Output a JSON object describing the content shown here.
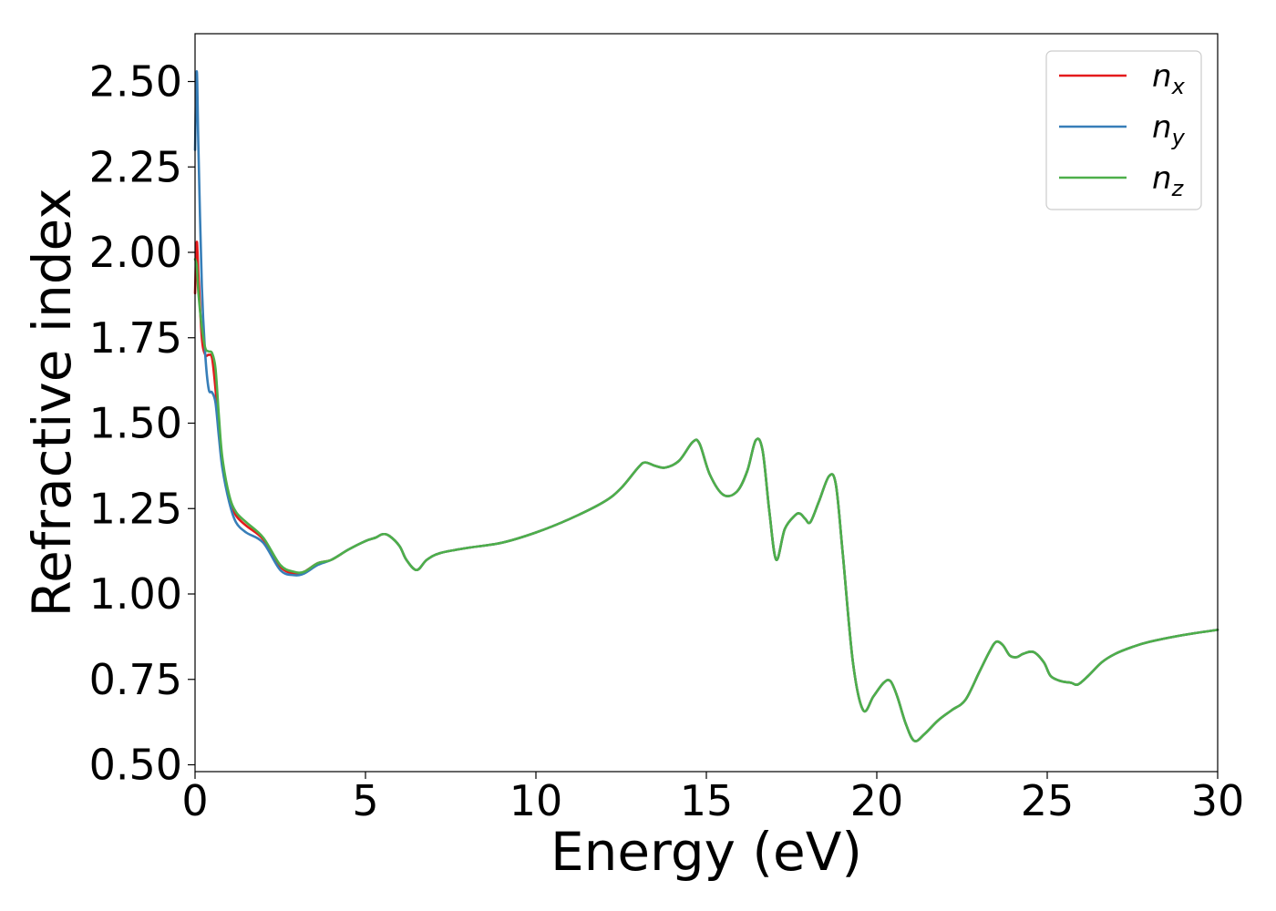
{
  "chart_data": {
    "type": "line",
    "xlabel": "Energy (eV)",
    "ylabel": "Refractive index",
    "xlim": [
      0,
      30
    ],
    "ylim": [
      0.48,
      2.64
    ],
    "x_ticks": [
      "0",
      "5",
      "10",
      "15",
      "20",
      "25",
      "30"
    ],
    "y_ticks": [
      "0.50",
      "0.75",
      "1.00",
      "1.25",
      "1.50",
      "1.75",
      "2.00",
      "2.25",
      "2.50"
    ],
    "grid": false,
    "legend_position": "top-right",
    "series": [
      {
        "name": "n",
        "subscript": "x",
        "color": "#e41a1c",
        "x": [
          0.0,
          0.05,
          0.1,
          0.2,
          0.3,
          0.4,
          0.5,
          0.6,
          0.7,
          0.8,
          1.0,
          1.2,
          1.5,
          2.0,
          2.5,
          2.9,
          3.2,
          3.6,
          4.0,
          4.5,
          5.0,
          5.3,
          5.5,
          5.7,
          6.0,
          6.2,
          6.5,
          6.8,
          7.2,
          8.0,
          9.0,
          10.0,
          11.0,
          12.0,
          12.5,
          13.0,
          13.2,
          13.5,
          13.8,
          14.2,
          14.6,
          14.8,
          15.1,
          15.5,
          15.9,
          16.2,
          16.45,
          16.65,
          16.85,
          17.05,
          17.3,
          17.6,
          17.75,
          17.9,
          18.05,
          18.3,
          18.6,
          18.8,
          19.0,
          19.3,
          19.6,
          19.9,
          20.2,
          20.4,
          20.6,
          20.85,
          21.1,
          21.4,
          21.8,
          22.2,
          22.6,
          23.0,
          23.3,
          23.5,
          23.7,
          23.9,
          24.1,
          24.3,
          24.6,
          24.9,
          25.1,
          25.4,
          25.7,
          25.9,
          26.2,
          26.6,
          27.0,
          27.5,
          28.0,
          29.0,
          30.0
        ],
        "y": [
          1.88,
          2.03,
          1.93,
          1.75,
          1.7,
          1.7,
          1.69,
          1.6,
          1.48,
          1.38,
          1.28,
          1.23,
          1.2,
          1.16,
          1.08,
          1.06,
          1.065,
          1.09,
          1.1,
          1.13,
          1.155,
          1.165,
          1.175,
          1.17,
          1.14,
          1.1,
          1.07,
          1.1,
          1.12,
          1.135,
          1.15,
          1.18,
          1.22,
          1.27,
          1.31,
          1.37,
          1.385,
          1.375,
          1.37,
          1.39,
          1.445,
          1.44,
          1.35,
          1.29,
          1.3,
          1.36,
          1.45,
          1.42,
          1.24,
          1.1,
          1.19,
          1.23,
          1.235,
          1.22,
          1.21,
          1.27,
          1.345,
          1.32,
          1.12,
          0.8,
          0.66,
          0.7,
          0.74,
          0.745,
          0.7,
          0.62,
          0.57,
          0.59,
          0.63,
          0.66,
          0.69,
          0.77,
          0.83,
          0.86,
          0.85,
          0.82,
          0.815,
          0.825,
          0.83,
          0.8,
          0.76,
          0.745,
          0.74,
          0.735,
          0.76,
          0.8,
          0.825,
          0.845,
          0.86,
          0.88,
          0.895
        ]
      },
      {
        "name": "n",
        "subscript": "y",
        "color": "#377eb8",
        "x": [
          0.0,
          0.05,
          0.1,
          0.2,
          0.3,
          0.4,
          0.5,
          0.6,
          0.7,
          0.8,
          1.0,
          1.2,
          1.5,
          2.0,
          2.5,
          2.9,
          3.2,
          3.6,
          4.0,
          4.5,
          5.0,
          5.3,
          5.5,
          5.7,
          6.0,
          6.2,
          6.5,
          6.8,
          7.2,
          8.0,
          9.0,
          10.0,
          11.0,
          12.0,
          12.5,
          13.0,
          13.2,
          13.5,
          13.8,
          14.2,
          14.6,
          14.8,
          15.1,
          15.5,
          15.9,
          16.2,
          16.45,
          16.65,
          16.85,
          17.05,
          17.3,
          17.6,
          17.75,
          17.9,
          18.05,
          18.3,
          18.6,
          18.8,
          19.0,
          19.3,
          19.6,
          19.9,
          20.2,
          20.4,
          20.6,
          20.85,
          21.1,
          21.4,
          21.8,
          22.2,
          22.6,
          23.0,
          23.3,
          23.5,
          23.7,
          23.9,
          24.1,
          24.3,
          24.6,
          24.9,
          25.1,
          25.4,
          25.7,
          25.9,
          26.2,
          26.6,
          27.0,
          27.5,
          28.0,
          29.0,
          30.0
        ],
        "y": [
          2.3,
          2.53,
          2.3,
          1.9,
          1.7,
          1.6,
          1.59,
          1.56,
          1.46,
          1.37,
          1.27,
          1.21,
          1.18,
          1.15,
          1.07,
          1.055,
          1.06,
          1.085,
          1.1,
          1.13,
          1.155,
          1.165,
          1.175,
          1.17,
          1.14,
          1.1,
          1.07,
          1.1,
          1.12,
          1.135,
          1.15,
          1.18,
          1.22,
          1.27,
          1.31,
          1.37,
          1.385,
          1.375,
          1.37,
          1.39,
          1.445,
          1.44,
          1.35,
          1.29,
          1.3,
          1.36,
          1.45,
          1.42,
          1.24,
          1.1,
          1.19,
          1.23,
          1.235,
          1.22,
          1.21,
          1.27,
          1.345,
          1.32,
          1.12,
          0.8,
          0.66,
          0.7,
          0.74,
          0.745,
          0.7,
          0.62,
          0.57,
          0.59,
          0.63,
          0.66,
          0.69,
          0.77,
          0.83,
          0.86,
          0.85,
          0.82,
          0.815,
          0.825,
          0.83,
          0.8,
          0.76,
          0.745,
          0.74,
          0.735,
          0.76,
          0.8,
          0.825,
          0.845,
          0.86,
          0.88,
          0.895
        ]
      },
      {
        "name": "n",
        "subscript": "z",
        "color": "#4daf4a",
        "x": [
          0.0,
          0.05,
          0.1,
          0.2,
          0.3,
          0.4,
          0.5,
          0.6,
          0.7,
          0.8,
          1.0,
          1.2,
          1.5,
          2.0,
          2.5,
          2.9,
          3.2,
          3.6,
          4.0,
          4.5,
          5.0,
          5.3,
          5.5,
          5.7,
          6.0,
          6.2,
          6.5,
          6.8,
          7.2,
          8.0,
          9.0,
          10.0,
          11.0,
          12.0,
          12.5,
          13.0,
          13.2,
          13.5,
          13.8,
          14.2,
          14.6,
          14.8,
          15.1,
          15.5,
          15.9,
          16.2,
          16.45,
          16.65,
          16.85,
          17.05,
          17.3,
          17.6,
          17.75,
          17.9,
          18.05,
          18.3,
          18.6,
          18.8,
          19.0,
          19.3,
          19.6,
          19.9,
          20.2,
          20.4,
          20.6,
          20.85,
          21.1,
          21.4,
          21.8,
          22.2,
          22.6,
          23.0,
          23.3,
          23.5,
          23.7,
          23.9,
          24.1,
          24.3,
          24.6,
          24.9,
          25.1,
          25.4,
          25.7,
          25.9,
          26.2,
          26.6,
          27.0,
          27.5,
          28.0,
          29.0,
          30.0
        ],
        "y": [
          1.98,
          1.96,
          1.88,
          1.78,
          1.72,
          1.71,
          1.705,
          1.66,
          1.52,
          1.4,
          1.29,
          1.24,
          1.21,
          1.165,
          1.085,
          1.065,
          1.065,
          1.09,
          1.1,
          1.13,
          1.155,
          1.165,
          1.175,
          1.17,
          1.14,
          1.1,
          1.07,
          1.1,
          1.12,
          1.135,
          1.15,
          1.18,
          1.22,
          1.27,
          1.31,
          1.37,
          1.385,
          1.375,
          1.37,
          1.39,
          1.445,
          1.44,
          1.35,
          1.29,
          1.3,
          1.36,
          1.45,
          1.42,
          1.24,
          1.1,
          1.19,
          1.23,
          1.235,
          1.22,
          1.21,
          1.27,
          1.345,
          1.32,
          1.12,
          0.8,
          0.66,
          0.7,
          0.74,
          0.745,
          0.7,
          0.62,
          0.57,
          0.59,
          0.63,
          0.66,
          0.69,
          0.77,
          0.83,
          0.86,
          0.85,
          0.82,
          0.815,
          0.825,
          0.83,
          0.8,
          0.76,
          0.745,
          0.74,
          0.735,
          0.76,
          0.8,
          0.825,
          0.845,
          0.86,
          0.88,
          0.895
        ]
      }
    ]
  }
}
